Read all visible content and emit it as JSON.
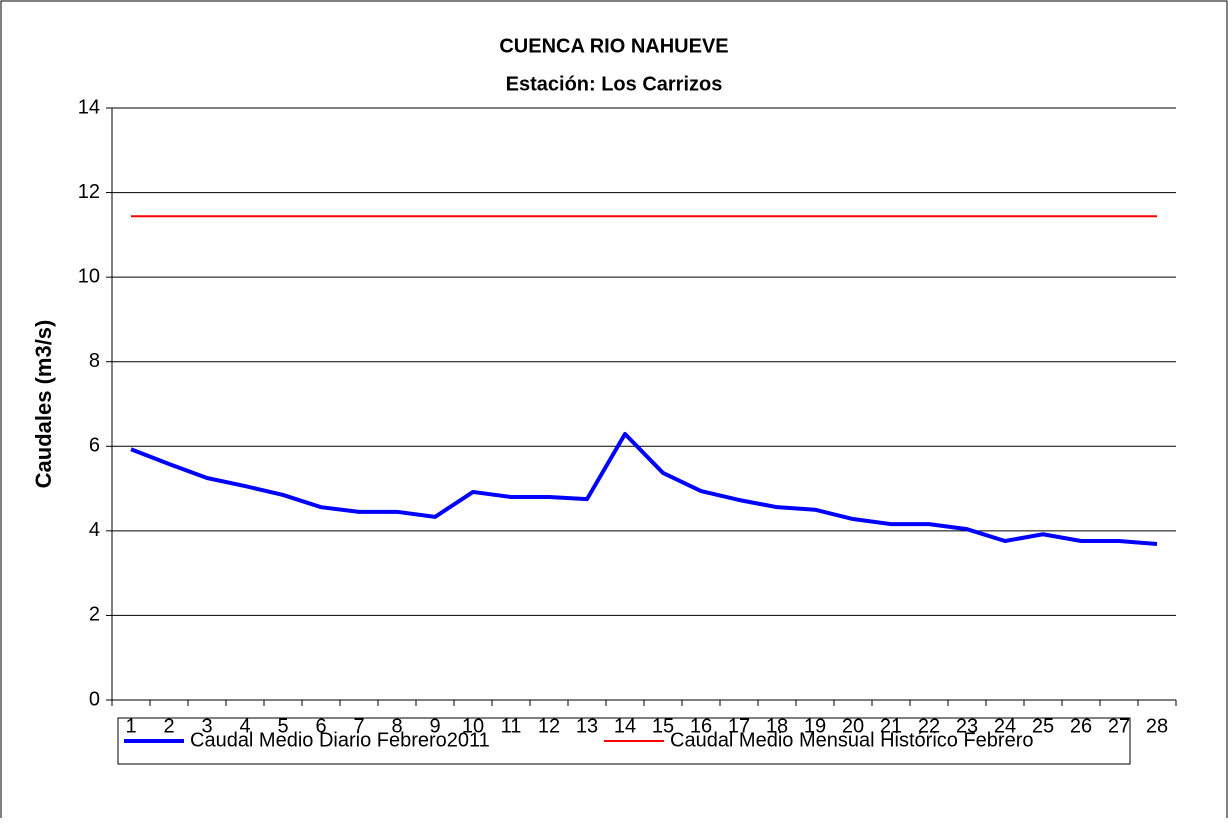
{
  "chart_data": {
    "type": "line",
    "title": "CUENCA RIO NAHUEVE",
    "subtitle": "Estación: Los Carrizos",
    "y_label": "Caudales (m3/s)",
    "categories": [
      "1",
      "2",
      "3",
      "4",
      "5",
      "6",
      "7",
      "8",
      "9",
      "10",
      "11",
      "12",
      "13",
      "14",
      "15",
      "16",
      "17",
      "18",
      "19",
      "20",
      "21",
      "22",
      "23",
      "24",
      "25",
      "26",
      "27",
      "28"
    ],
    "series": [
      {
        "name": "Caudal Medio Diario Febrero2011",
        "color": "#0000ff",
        "width": 4,
        "values": [
          5.93,
          5.58,
          5.25,
          5.06,
          4.85,
          4.56,
          4.45,
          4.45,
          4.33,
          4.92,
          4.8,
          4.8,
          4.75,
          6.29,
          5.37,
          4.94,
          4.73,
          4.56,
          4.5,
          4.28,
          4.16,
          4.16,
          4.04,
          3.76,
          3.92,
          3.76,
          3.76,
          3.69
        ]
      },
      {
        "name": "Caudal Medio Mensual Histórico Febrero",
        "color": "#ff0000",
        "width": 2,
        "values": [
          11.44,
          11.44,
          11.44,
          11.44,
          11.44,
          11.44,
          11.44,
          11.44,
          11.44,
          11.44,
          11.44,
          11.44,
          11.44,
          11.44,
          11.44,
          11.44,
          11.44,
          11.44,
          11.44,
          11.44,
          11.44,
          11.44,
          11.44,
          11.44,
          11.44,
          11.44,
          11.44,
          11.44
        ]
      }
    ],
    "ylim": [
      0,
      14
    ],
    "yticks": [
      0,
      2,
      4,
      6,
      8,
      10,
      12,
      14
    ],
    "grid": true,
    "legend": "bottom"
  }
}
